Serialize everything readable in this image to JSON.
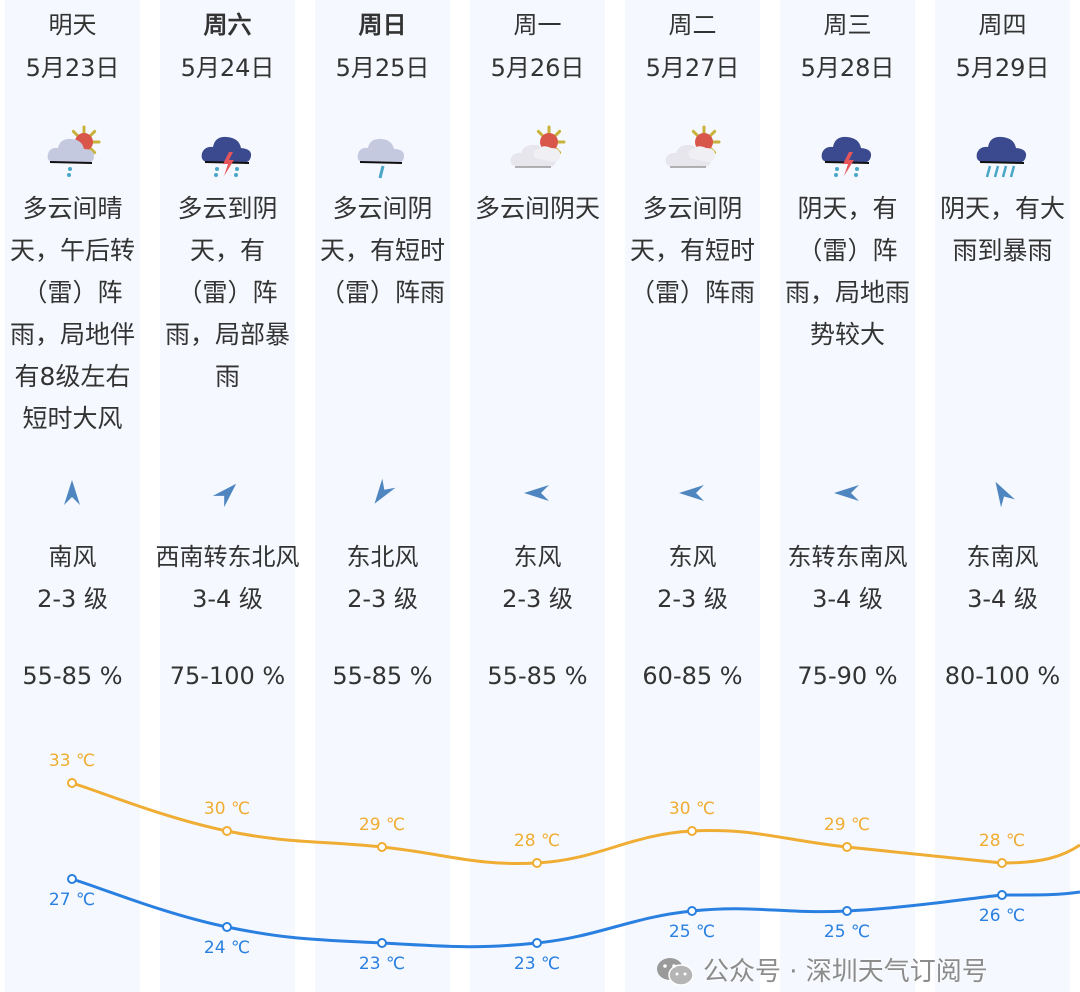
{
  "colors": {
    "high": "#f0ad34",
    "low": "#2a80e0",
    "column_bg": "#f5f8fe",
    "arrow": "#4f86c0"
  },
  "days": [
    {
      "name": "明天",
      "bold": false,
      "date": "5月23日",
      "icon": "partly-cloudy-rain-icon",
      "desc": "多云间晴天，午后转（雷）阵雨，局地伴有8级左右短时大风",
      "wind_dir_deg": 0,
      "wind": "南风",
      "level": "2-3 级",
      "humidity": "55-85 %",
      "high": "33 ℃",
      "low": "27 ℃"
    },
    {
      "name": "周六",
      "bold": true,
      "date": "5月24日",
      "icon": "thunderstorm-icon",
      "desc": "多云到阴天，有（雷）阵雨，局部暴雨",
      "wind_dir_deg": 45,
      "wind": "西南转东北风",
      "level": "3-4 级",
      "humidity": "75-100 %",
      "high": "30 ℃",
      "low": "24 ℃"
    },
    {
      "name": "周日",
      "bold": true,
      "date": "5月25日",
      "icon": "cloudy-rain-icon",
      "desc": "多云间阴天，有短时（雷）阵雨",
      "wind_dir_deg": 215,
      "wind": "东北风",
      "level": "2-3 级",
      "humidity": "55-85 %",
      "high": "29 ℃",
      "low": "23 ℃"
    },
    {
      "name": "周一",
      "bold": false,
      "date": "5月26日",
      "icon": "partly-cloudy-icon",
      "desc": "多云间阴天",
      "wind_dir_deg": 270,
      "wind": "东风",
      "level": "2-3 级",
      "humidity": "55-85 %",
      "high": "28 ℃",
      "low": "23 ℃"
    },
    {
      "name": "周二",
      "bold": false,
      "date": "5月27日",
      "icon": "partly-cloudy-icon",
      "desc": "多云间阴天，有短时（雷）阵雨",
      "wind_dir_deg": 270,
      "wind": "东风",
      "level": "2-3 级",
      "humidity": "60-85 %",
      "high": "30 ℃",
      "low": "25 ℃"
    },
    {
      "name": "周三",
      "bold": false,
      "date": "5月28日",
      "icon": "thunderstorm-icon",
      "desc": "阴天，有（雷）阵雨，局地雨势较大",
      "wind_dir_deg": 270,
      "wind": "东转东南风",
      "level": "3-4 级",
      "humidity": "75-90 %",
      "high": "29 ℃",
      "low": "25 ℃"
    },
    {
      "name": "周四",
      "bold": false,
      "date": "5月29日",
      "icon": "heavy-rain-icon",
      "desc": "阴天，有大雨到暴雨",
      "wind_dir_deg": -30,
      "wind": "东南风",
      "level": "3-4 级",
      "humidity": "80-100 %",
      "high": "28 ℃",
      "low": "26 ℃"
    }
  ],
  "chart_data": {
    "type": "line",
    "categories": [
      "5月23日",
      "5月24日",
      "5月25日",
      "5月26日",
      "5月27日",
      "5月28日",
      "5月29日"
    ],
    "series": [
      {
        "key": "high",
        "values": [
          33,
          30,
          29,
          28,
          30,
          29,
          28
        ]
      },
      {
        "key": "low",
        "values": [
          27,
          24,
          23,
          23,
          25,
          25,
          26
        ]
      }
    ]
  },
  "watermark": {
    "text": "公众号 · 深圳天气订阅号",
    "icon": "wechat-icon"
  }
}
